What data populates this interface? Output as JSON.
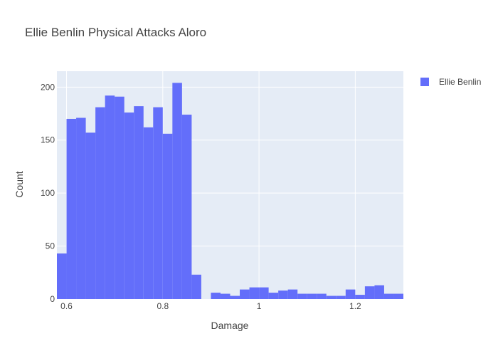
{
  "chart_data": {
    "type": "bar",
    "title": "Ellie Benlin Physical Attacks Aloro",
    "xlabel": "Damage",
    "ylabel": "Count",
    "xlim": [
      0.58,
      1.3
    ],
    "ylim": [
      0,
      215
    ],
    "bin_width": 0.02,
    "x_ticks": [
      0.6,
      0.8,
      1,
      1.2
    ],
    "x_tick_labels": [
      "0.6",
      "0.8",
      "1",
      "1.2"
    ],
    "y_ticks": [
      0,
      50,
      100,
      150,
      200
    ],
    "y_tick_labels": [
      "0",
      "50",
      "100",
      "150",
      "200"
    ],
    "grid": true,
    "legend_position": "top-right",
    "series": [
      {
        "name": "Ellie Benlin",
        "color": "#636efa",
        "bin_starts": [
          0.58,
          0.6,
          0.62,
          0.64,
          0.66,
          0.68,
          0.7,
          0.72,
          0.74,
          0.76,
          0.78,
          0.8,
          0.82,
          0.84,
          0.86,
          0.88,
          0.9,
          0.92,
          0.94,
          0.96,
          0.98,
          1.0,
          1.02,
          1.04,
          1.06,
          1.08,
          1.1,
          1.12,
          1.14,
          1.16,
          1.18,
          1.2,
          1.22,
          1.24,
          1.26,
          1.28
        ],
        "values": [
          43,
          170,
          171,
          157,
          181,
          192,
          191,
          176,
          182,
          162,
          181,
          156,
          204,
          174,
          23,
          0,
          6,
          5,
          3,
          9,
          11,
          11,
          6,
          8,
          9,
          5,
          5,
          5,
          3,
          3,
          9,
          4,
          12,
          13,
          5,
          5
        ]
      }
    ]
  }
}
